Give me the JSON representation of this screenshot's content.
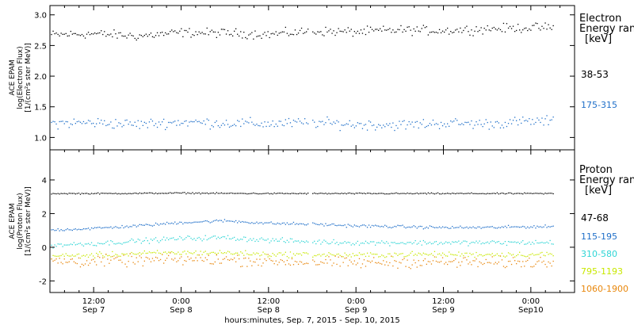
{
  "chart_data": {
    "type": "scatter",
    "xlabel": "hours:minutes, Sep.  7, 2015 - Sep. 10, 2015",
    "x_range_hours": [
      0,
      72
    ],
    "x_ticks": [
      {
        "hour": 6,
        "time": "12:00",
        "date": "Sep 7"
      },
      {
        "hour": 18,
        "time": "0:00",
        "date": "Sep 8"
      },
      {
        "hour": 30,
        "time": "12:00",
        "date": "Sep 8"
      },
      {
        "hour": 42,
        "time": "0:00",
        "date": "Sep 9"
      },
      {
        "hour": 54,
        "time": "12:00",
        "date": "Sep 9"
      },
      {
        "hour": 66,
        "time": "0:00",
        "date": "Sep10"
      }
    ],
    "data_end_hour": 69.2,
    "data_gap_hours": [
      35.4,
      35.8
    ],
    "panels": [
      {
        "id": "electron",
        "ylabel_lines": [
          "ACE EPAM",
          "log(Electron Flux)",
          "[1/(cm²s ster MeV)]"
        ],
        "ylim": [
          0.85,
          3.1
        ],
        "yticks": [
          1.0,
          1.5,
          2.0,
          2.5,
          3.0
        ],
        "ytick_labels": [
          "1.0",
          "1.5",
          "2.0",
          "2.5",
          "3.0"
        ],
        "legend_title": [
          "Electron",
          "Energy ranges",
          "[keV]"
        ],
        "series": [
          {
            "name": "38-53",
            "color": "#000000",
            "values_every_6h": [
              2.68,
              2.7,
              2.66,
              2.72,
              2.71,
              2.69,
              2.74,
              2.73,
              2.76,
              2.75,
              2.78,
              2.8
            ],
            "spread": 0.06
          },
          {
            "name": "175-315",
            "color": "#1f6fc9",
            "values_every_6h": [
              1.24,
              1.25,
              1.22,
              1.26,
              1.24,
              1.23,
              1.25,
              1.22,
              1.21,
              1.24,
              1.23,
              1.27
            ],
            "spread": 0.07
          }
        ]
      },
      {
        "id": "proton",
        "ylabel_lines": [
          "ACE EPAM",
          "log(Proton Flux)",
          "[1/(cm²s ster MeV)]"
        ],
        "ylim": [
          -2.5,
          5.6
        ],
        "yticks": [
          -2,
          0,
          2,
          4
        ],
        "ytick_labels": [
          "-2",
          "0",
          "2",
          "4"
        ],
        "legend_title": [
          "Proton",
          "Energy ranges",
          "[keV]"
        ],
        "series": [
          {
            "name": "47-68",
            "color": "#000000",
            "values_every_6h": [
              3.22,
              3.22,
              3.23,
              3.25,
              3.23,
              3.22,
              3.22,
              3.22,
              3.22,
              3.22,
              3.22,
              3.22
            ],
            "spread": 0.03
          },
          {
            "name": "115-195",
            "color": "#1f6fc9",
            "values_every_6h": [
              1.05,
              1.15,
              1.3,
              1.5,
              1.6,
              1.45,
              1.4,
              1.3,
              1.25,
              1.2,
              1.2,
              1.25
            ],
            "spread": 0.07
          },
          {
            "name": "310-580",
            "color": "#2fd5d5",
            "values_every_6h": [
              0.15,
              0.25,
              0.4,
              0.55,
              0.6,
              0.45,
              0.35,
              0.3,
              0.3,
              0.3,
              0.3,
              0.3
            ],
            "spread": 0.12
          },
          {
            "name": "795-1193",
            "color": "#c8e800",
            "values_every_6h": [
              -0.5,
              -0.45,
              -0.35,
              -0.3,
              -0.3,
              -0.4,
              -0.4,
              -0.45,
              -0.4,
              -0.4,
              -0.4,
              -0.4
            ],
            "spread": 0.13
          },
          {
            "name": "1060-1900",
            "color": "#e8870c",
            "values_every_6h": [
              -0.8,
              -0.8,
              -0.75,
              -0.7,
              -0.7,
              -0.8,
              -0.85,
              -0.9,
              -0.85,
              -0.85,
              -0.9,
              -0.85
            ],
            "spread": 0.28
          }
        ]
      }
    ]
  }
}
